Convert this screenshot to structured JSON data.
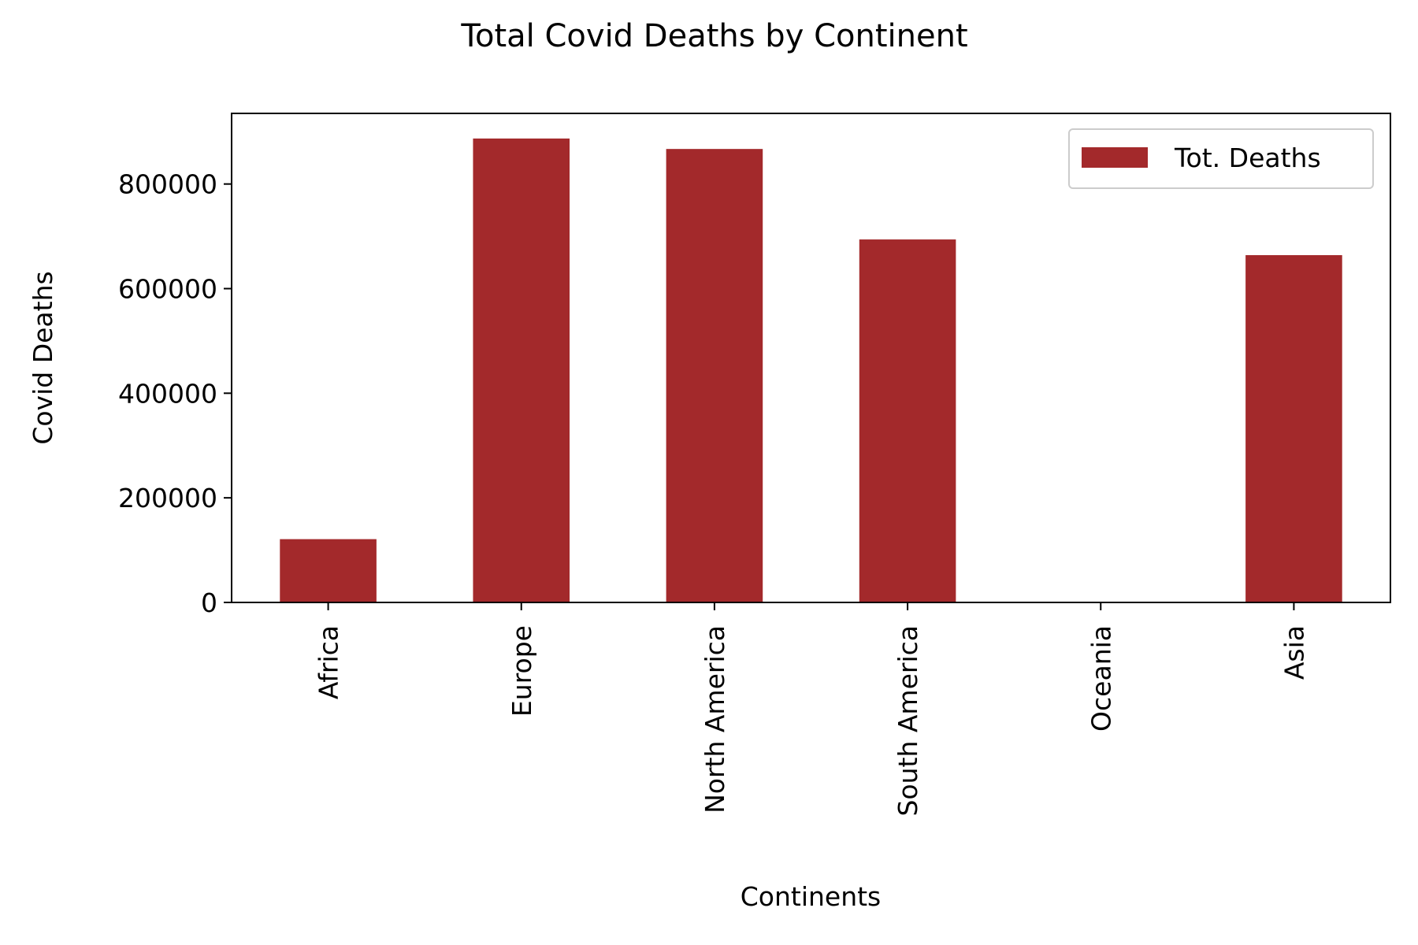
{
  "chart_data": {
    "type": "bar",
    "title": "Total Covid Deaths by Continent",
    "xlabel": "Continents",
    "ylabel": "Covid Deaths",
    "categories": [
      "Africa",
      "Europe",
      "North America",
      "South America",
      "Oceania",
      "Asia"
    ],
    "series": [
      {
        "name": "Tot. Deaths",
        "color": "#a3292b",
        "values": [
          121000,
          887000,
          867000,
          694000,
          0,
          664000
        ]
      }
    ],
    "ylim": [
      0,
      935000
    ],
    "yticks": [
      0,
      200000,
      400000,
      600000,
      800000
    ],
    "grid": false,
    "legend": "top-right"
  }
}
